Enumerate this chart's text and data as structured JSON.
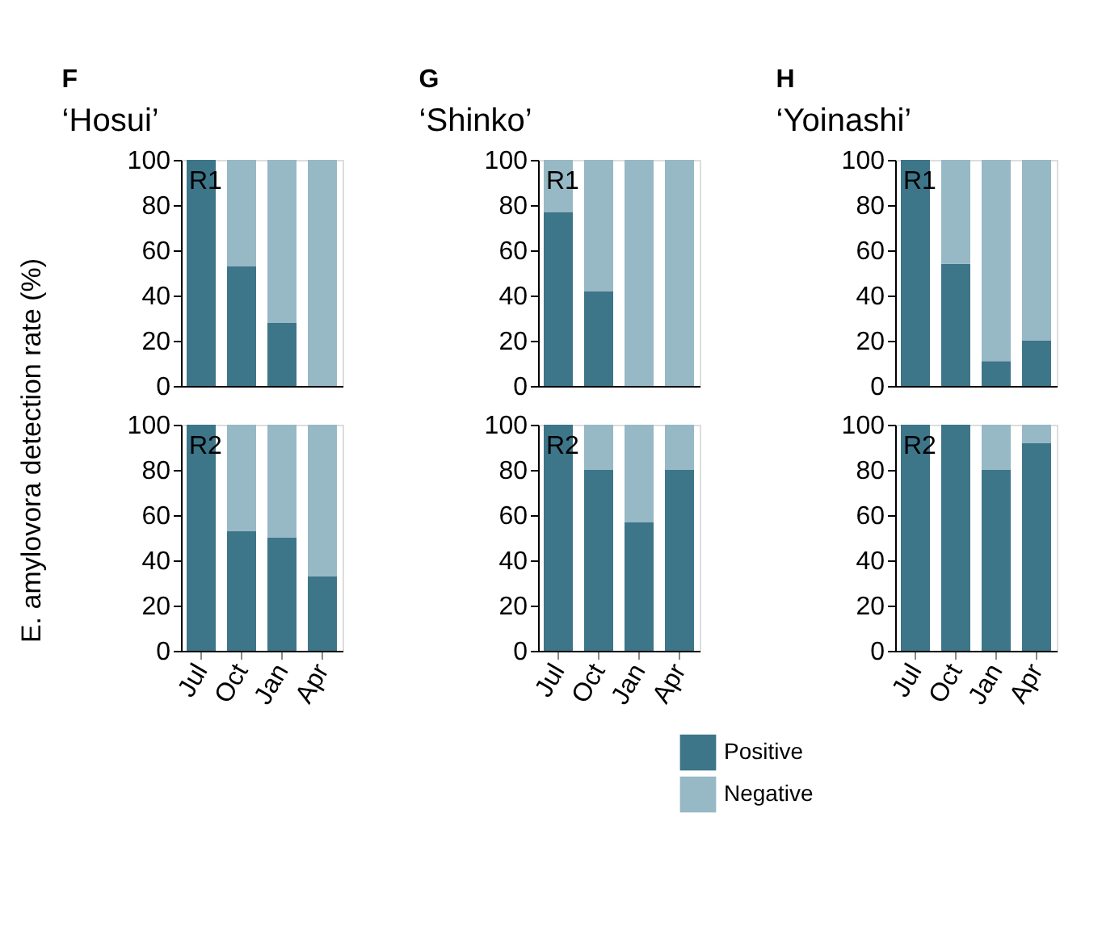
{
  "chart_data": [
    {
      "type": "bar",
      "stacked": true,
      "title": "F",
      "subtitle": "‘Hosui’",
      "ylabel": "E. amylovora detection rate (%)",
      "annotations": [
        "R1"
      ],
      "categories": [
        "Jul",
        "Oct",
        "Jan",
        "Apr"
      ],
      "ylim": [
        0,
        100
      ],
      "yticks": [
        0,
        20,
        40,
        60,
        80,
        100
      ],
      "tick_labels": "y",
      "legend": "bottom right",
      "series": [
        {
          "name": "Positive",
          "color": "#3d7589",
          "values": [
            100,
            53,
            28,
            0
          ]
        },
        {
          "name": "Negative",
          "color": "#97b8c5",
          "values": [
            0,
            47,
            72,
            100
          ]
        }
      ]
    },
    {
      "type": "bar",
      "stacked": true,
      "title": "G",
      "subtitle": "‘Shinko’",
      "annotations": [
        "R1"
      ],
      "categories": [
        "Jul",
        "Oct",
        "Jan",
        "Apr"
      ],
      "ylim": [
        0,
        100
      ],
      "yticks": [
        0,
        20,
        40,
        60,
        80,
        100
      ],
      "tick_labels": "y",
      "legend": "bottom right",
      "series": [
        {
          "name": "Positive",
          "color": "#3d7589",
          "values": [
            77,
            42,
            0,
            0
          ]
        },
        {
          "name": "Negative",
          "color": "#97b8c5",
          "values": [
            23,
            58,
            100,
            100
          ]
        }
      ]
    },
    {
      "type": "bar",
      "stacked": true,
      "title": "H",
      "subtitle": "‘Yoinashi’",
      "annotations": [
        "R1"
      ],
      "categories": [
        "Jul",
        "Oct",
        "Jan",
        "Apr"
      ],
      "ylim": [
        0,
        100
      ],
      "yticks": [
        0,
        20,
        40,
        60,
        80,
        100
      ],
      "tick_labels": "y",
      "legend": "bottom right",
      "series": [
        {
          "name": "Positive",
          "color": "#3d7589",
          "values": [
            100,
            54,
            11,
            20
          ]
        },
        {
          "name": "Negative",
          "color": "#97b8c5",
          "values": [
            0,
            46,
            89,
            80
          ]
        }
      ]
    },
    {
      "type": "bar",
      "stacked": true,
      "annotations": [
        "R2"
      ],
      "categories": [
        "Jul",
        "Oct",
        "Jan",
        "Apr"
      ],
      "ylim": [
        0,
        100
      ],
      "yticks": [
        0,
        20,
        40,
        60,
        80,
        100
      ],
      "legend": "bottom right",
      "series": [
        {
          "name": "Positive",
          "color": "#3d7589",
          "values": [
            100,
            53,
            50,
            33
          ]
        },
        {
          "name": "Negative",
          "color": "#97b8c5",
          "values": [
            0,
            47,
            50,
            67
          ]
        }
      ]
    },
    {
      "type": "bar",
      "stacked": true,
      "annotations": [
        "R2"
      ],
      "categories": [
        "Jul",
        "Oct",
        "Jan",
        "Apr"
      ],
      "ylim": [
        0,
        100
      ],
      "yticks": [
        0,
        20,
        40,
        60,
        80,
        100
      ],
      "legend": "bottom right",
      "series": [
        {
          "name": "Positive",
          "color": "#3d7589",
          "values": [
            100,
            80,
            57,
            80
          ]
        },
        {
          "name": "Negative",
          "color": "#97b8c5",
          "values": [
            0,
            20,
            43,
            20
          ]
        }
      ]
    },
    {
      "type": "bar",
      "stacked": true,
      "annotations": [
        "R2"
      ],
      "categories": [
        "Jul",
        "Oct",
        "Jan",
        "Apr"
      ],
      "ylim": [
        0,
        100
      ],
      "yticks": [
        0,
        20,
        40,
        60,
        80,
        100
      ],
      "legend": "bottom right",
      "series": [
        {
          "name": "Positive",
          "color": "#3d7589",
          "values": [
            100,
            100,
            80,
            92
          ]
        },
        {
          "name": "Negative",
          "color": "#97b8c5",
          "values": [
            0,
            0,
            20,
            8
          ]
        }
      ]
    }
  ]
}
